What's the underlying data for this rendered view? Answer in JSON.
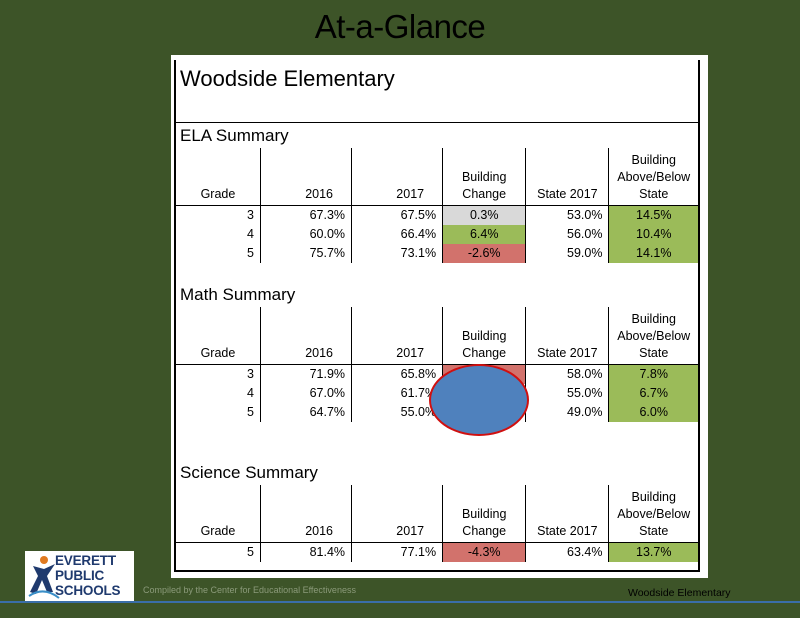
{
  "slide_title": "At-a-Glance",
  "school_name": "Woodside Elementary",
  "columns": {
    "grade": "Grade",
    "y2016": "2016",
    "y2017": "2017",
    "change": "Building Change",
    "state2017": "State 2017",
    "above_below": "Building Above/Below State"
  },
  "ela": {
    "title": "ELA Summary",
    "rows": [
      {
        "grade": "3",
        "y2016": "67.3%",
        "y2017": "67.5%",
        "change": "0.3%",
        "state": "53.0%",
        "ab": "14.5%"
      },
      {
        "grade": "4",
        "y2016": "60.0%",
        "y2017": "66.4%",
        "change": "6.4%",
        "state": "56.0%",
        "ab": "10.4%"
      },
      {
        "grade": "5",
        "y2016": "75.7%",
        "y2017": "73.1%",
        "change": "-2.6%",
        "state": "59.0%",
        "ab": "14.1%"
      }
    ]
  },
  "math": {
    "title": "Math Summary",
    "rows": [
      {
        "grade": "3",
        "y2016": "71.9%",
        "y2017": "65.8%",
        "change": "",
        "state": "58.0%",
        "ab": "7.8%"
      },
      {
        "grade": "4",
        "y2016": "67.0%",
        "y2017": "61.7%",
        "change": "",
        "state": "55.0%",
        "ab": "6.7%"
      },
      {
        "grade": "5",
        "y2016": "64.7%",
        "y2017": "55.0%",
        "change": "",
        "state": "49.0%",
        "ab": "6.0%"
      }
    ]
  },
  "science": {
    "title": "Science Summary",
    "rows": [
      {
        "grade": "5",
        "y2016": "81.4%",
        "y2017": "77.1%",
        "change": "-4.3%",
        "state": "63.4%",
        "ab": "13.7%"
      }
    ]
  },
  "logo": {
    "line1": "EVERETT",
    "line2": "PUBLIC",
    "line3": "SCHOOLS"
  },
  "footer": {
    "note": "Compiled by the Center for Educational Effectiveness",
    "school": "Woodside Elementary"
  },
  "colors": {
    "background": "#3d5428",
    "green": "#9bbb59",
    "red": "#d2726c",
    "gray": "#d9d9d9",
    "blob": "#4f81bd"
  }
}
